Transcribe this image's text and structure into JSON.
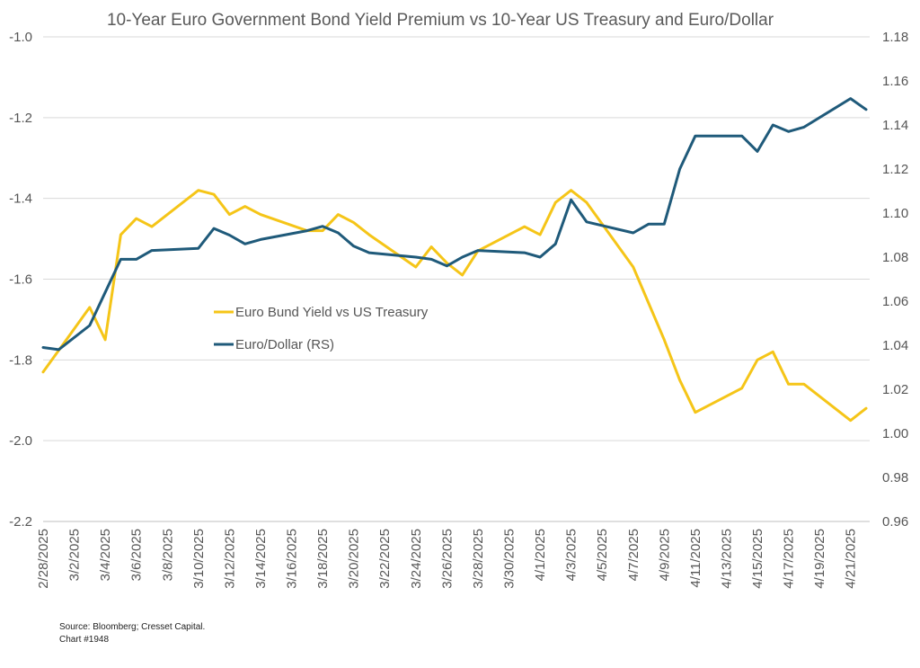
{
  "chart_data": {
    "type": "line",
    "title": "10-Year Euro Government Bond Yield Premium vs 10-Year US Treasury and Euro/Dollar",
    "source": "Source: Bloomberg; Cresset Capital.",
    "chart_number": "Chart #1948",
    "y_left": {
      "min": -2.2,
      "max": -1.0,
      "ticks": [
        "-1.0",
        "-1.2",
        "-1.4",
        "-1.6",
        "-1.8",
        "-2.0",
        "-2.2"
      ]
    },
    "y_right": {
      "min": 0.96,
      "max": 1.18,
      "ticks": [
        "1.18",
        "1.16",
        "1.14",
        "1.12",
        "1.10",
        "1.08",
        "1.06",
        "1.04",
        "1.02",
        "1.00",
        "0.98",
        "0.96"
      ]
    },
    "x_ticks": [
      "2/28/2025",
      "3/2/2025",
      "3/4/2025",
      "3/6/2025",
      "3/8/2025",
      "3/10/2025",
      "3/12/2025",
      "3/14/2025",
      "3/16/2025",
      "3/18/2025",
      "3/20/2025",
      "3/22/2025",
      "3/24/2025",
      "3/26/2025",
      "3/28/2025",
      "3/30/2025",
      "4/1/2025",
      "4/3/2025",
      "4/5/2025",
      "4/7/2025",
      "4/9/2025",
      "4/11/2025",
      "4/13/2025",
      "4/15/2025",
      "4/17/2025",
      "4/19/2025",
      "4/21/2025"
    ],
    "grid": true,
    "legend_position": "center-left",
    "series": [
      {
        "name": "Euro Bund Yield vs US Treasury",
        "axis": "left",
        "color": "#F5C518",
        "x": [
          "2/28/2025",
          "3/3/2025",
          "3/4/2025",
          "3/5/2025",
          "3/6/2025",
          "3/7/2025",
          "3/10/2025",
          "3/11/2025",
          "3/12/2025",
          "3/13/2025",
          "3/14/2025",
          "3/17/2025",
          "3/18/2025",
          "3/19/2025",
          "3/20/2025",
          "3/21/2025",
          "3/24/2025",
          "3/25/2025",
          "3/26/2025",
          "3/27/2025",
          "3/28/2025",
          "3/31/2025",
          "4/1/2025",
          "4/2/2025",
          "4/3/2025",
          "4/4/2025",
          "4/7/2025",
          "4/8/2025",
          "4/9/2025",
          "4/10/2025",
          "4/11/2025",
          "4/14/2025",
          "4/15/2025",
          "4/16/2025",
          "4/17/2025",
          "4/18/2025",
          "4/21/2025",
          "4/22/2025"
        ],
        "values": [
          -1.83,
          -1.67,
          -1.75,
          -1.49,
          -1.45,
          -1.47,
          -1.38,
          -1.39,
          -1.44,
          -1.42,
          -1.44,
          -1.48,
          -1.48,
          -1.44,
          -1.46,
          -1.49,
          -1.57,
          -1.52,
          -1.56,
          -1.59,
          -1.53,
          -1.47,
          -1.49,
          -1.41,
          -1.38,
          -1.41,
          -1.57,
          -1.66,
          -1.75,
          -1.85,
          -1.93,
          -1.87,
          -1.8,
          -1.78,
          -1.86,
          -1.86,
          -1.95,
          -1.92
        ]
      },
      {
        "name": "Euro/Dollar (RS)",
        "axis": "right",
        "color": "#1F5A7A",
        "x": [
          "2/28/2025",
          "3/1/2025",
          "3/3/2025",
          "3/4/2025",
          "3/5/2025",
          "3/6/2025",
          "3/7/2025",
          "3/10/2025",
          "3/11/2025",
          "3/12/2025",
          "3/13/2025",
          "3/14/2025",
          "3/17/2025",
          "3/18/2025",
          "3/19/2025",
          "3/20/2025",
          "3/21/2025",
          "3/24/2025",
          "3/25/2025",
          "3/26/2025",
          "3/27/2025",
          "3/28/2025",
          "3/31/2025",
          "4/1/2025",
          "4/2/2025",
          "4/3/2025",
          "4/4/2025",
          "4/7/2025",
          "4/8/2025",
          "4/9/2025",
          "4/10/2025",
          "4/11/2025",
          "4/14/2025",
          "4/15/2025",
          "4/16/2025",
          "4/17/2025",
          "4/18/2025",
          "4/21/2025",
          "4/22/2025"
        ],
        "values": [
          1.039,
          1.038,
          1.049,
          1.064,
          1.079,
          1.079,
          1.083,
          1.084,
          1.093,
          1.09,
          1.086,
          1.088,
          1.092,
          1.094,
          1.091,
          1.085,
          1.082,
          1.08,
          1.079,
          1.076,
          1.08,
          1.083,
          1.082,
          1.08,
          1.086,
          1.106,
          1.096,
          1.091,
          1.095,
          1.095,
          1.12,
          1.135,
          1.135,
          1.128,
          1.14,
          1.137,
          1.139,
          1.152,
          1.147
        ]
      }
    ]
  }
}
